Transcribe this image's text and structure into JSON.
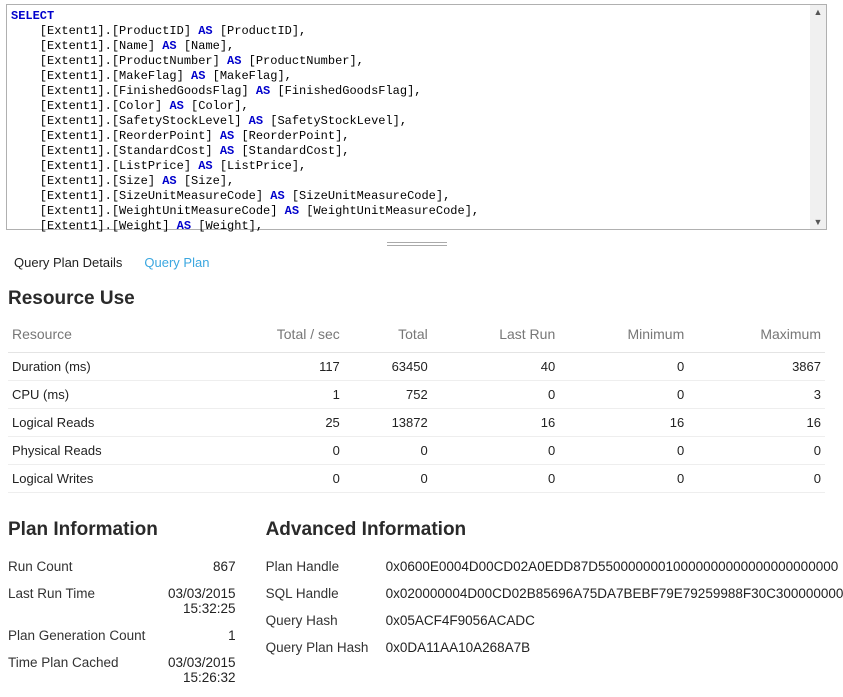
{
  "sql": {
    "lines": [
      {
        "indent": 0,
        "pre": "",
        "kw": "SELECT",
        "post": ""
      },
      {
        "indent": 1,
        "pre": "[Extent1].[ProductID] ",
        "kw": "AS",
        "post": " [ProductID],"
      },
      {
        "indent": 1,
        "pre": "[Extent1].[Name] ",
        "kw": "AS",
        "post": " [Name],"
      },
      {
        "indent": 1,
        "pre": "[Extent1].[ProductNumber] ",
        "kw": "AS",
        "post": " [ProductNumber],"
      },
      {
        "indent": 1,
        "pre": "[Extent1].[MakeFlag] ",
        "kw": "AS",
        "post": " [MakeFlag],"
      },
      {
        "indent": 1,
        "pre": "[Extent1].[FinishedGoodsFlag] ",
        "kw": "AS",
        "post": " [FinishedGoodsFlag],"
      },
      {
        "indent": 1,
        "pre": "[Extent1].[Color] ",
        "kw": "AS",
        "post": " [Color],"
      },
      {
        "indent": 1,
        "pre": "[Extent1].[SafetyStockLevel] ",
        "kw": "AS",
        "post": " [SafetyStockLevel],"
      },
      {
        "indent": 1,
        "pre": "[Extent1].[ReorderPoint] ",
        "kw": "AS",
        "post": " [ReorderPoint],"
      },
      {
        "indent": 1,
        "pre": "[Extent1].[StandardCost] ",
        "kw": "AS",
        "post": " [StandardCost],"
      },
      {
        "indent": 1,
        "pre": "[Extent1].[ListPrice] ",
        "kw": "AS",
        "post": " [ListPrice],"
      },
      {
        "indent": 1,
        "pre": "[Extent1].[Size] ",
        "kw": "AS",
        "post": " [Size],"
      },
      {
        "indent": 1,
        "pre": "[Extent1].[SizeUnitMeasureCode] ",
        "kw": "AS",
        "post": " [SizeUnitMeasureCode],"
      },
      {
        "indent": 1,
        "pre": "[Extent1].[WeightUnitMeasureCode] ",
        "kw": "AS",
        "post": " [WeightUnitMeasureCode],"
      },
      {
        "indent": 1,
        "pre": "[Extent1].[Weight] ",
        "kw": "AS",
        "post": " [Weight],"
      }
    ],
    "indent_unit": "    "
  },
  "tabs": {
    "details": "Query Plan Details",
    "plan": "Query Plan"
  },
  "resource": {
    "title": "Resource Use",
    "headers": [
      "Resource",
      "Total / sec",
      "Total",
      "Last Run",
      "Minimum",
      "Maximum"
    ],
    "rows": [
      {
        "label": "Duration (ms)",
        "vals": [
          "117",
          "63450",
          "40",
          "0",
          "3867"
        ]
      },
      {
        "label": "CPU (ms)",
        "vals": [
          "1",
          "752",
          "0",
          "0",
          "3"
        ]
      },
      {
        "label": "Logical Reads",
        "vals": [
          "25",
          "13872",
          "16",
          "16",
          "16"
        ]
      },
      {
        "label": "Physical Reads",
        "vals": [
          "0",
          "0",
          "0",
          "0",
          "0"
        ]
      },
      {
        "label": "Logical Writes",
        "vals": [
          "0",
          "0",
          "0",
          "0",
          "0"
        ]
      }
    ]
  },
  "planinfo": {
    "title": "Plan Information",
    "items": [
      {
        "k": "Run Count",
        "v": "867"
      },
      {
        "k": "Last Run Time",
        "v": "03/03/2015 15:32:25"
      },
      {
        "k": "Plan Generation Count",
        "v": "1"
      },
      {
        "k": "Time Plan Cached",
        "v": "03/03/2015 15:26:32"
      }
    ]
  },
  "advinfo": {
    "title": "Advanced Information",
    "items": [
      {
        "k": "Plan Handle",
        "v": "0x0600E0004D00CD02A0EDD87D55000000010000000000000000000000"
      },
      {
        "k": "SQL Handle",
        "v": "0x020000004D00CD02B85696A75DA7BEBF79E79259988F30C300000000"
      },
      {
        "k": "Query Hash",
        "v": "0x05ACF4F9056ACADC"
      },
      {
        "k": "Query Plan Hash",
        "v": "0x0DA11AA10A268A7B"
      }
    ]
  }
}
